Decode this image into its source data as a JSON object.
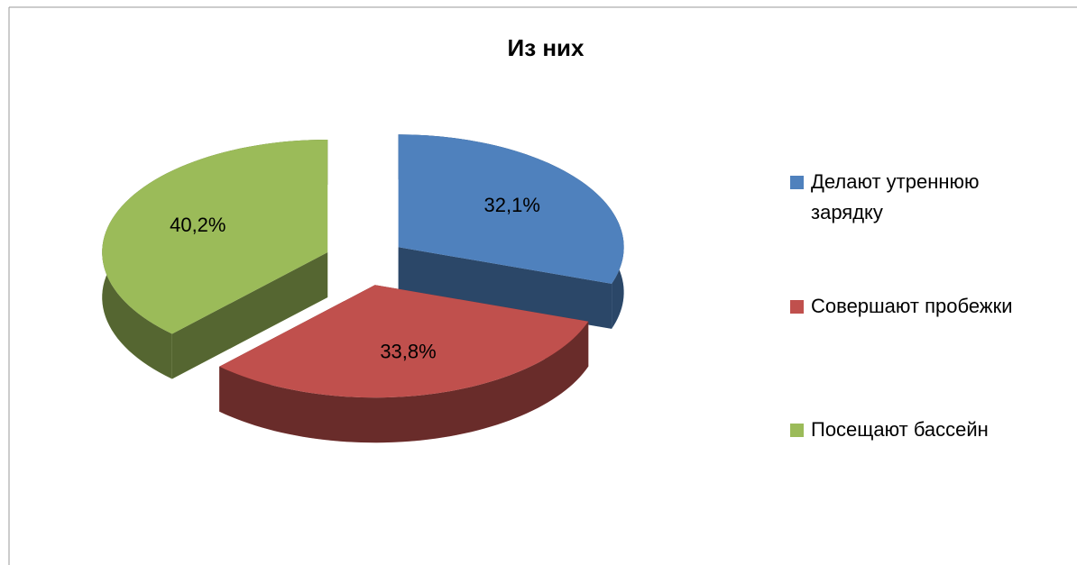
{
  "chart_data": {
    "type": "pie",
    "title": "Из них",
    "categories": [
      "Делают утреннюю зарядку",
      "Совершают пробежки",
      "Посещают бассейн"
    ],
    "values": [
      32.1,
      33.8,
      40.2
    ],
    "value_labels": [
      "32,1%",
      "33,8%",
      "40,2%"
    ],
    "colors": [
      "#4f81bd",
      "#c0504d",
      "#9bbb59"
    ],
    "legend": "right"
  }
}
